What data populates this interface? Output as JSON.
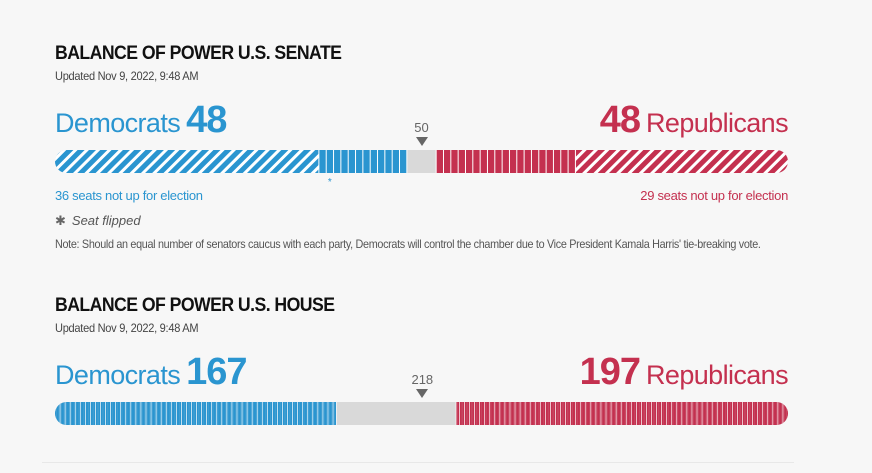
{
  "senate": {
    "title": "BALANCE OF POWER U.S. SENATE",
    "updated": "Updated Nov 9, 2022, 9:48 AM",
    "dem_label": "Democrats",
    "rep_label": "Republicans",
    "threshold_label": "50",
    "dem_note": "36 seats not up for election",
    "rep_note": "29 seats not up for election",
    "legend_star": "✱",
    "legend_label": "Seat flipped",
    "note": "Note: Should an equal number of senators caucus with each party, Democrats will control the chamber due to Vice President Kamala Harris' tie-breaking vote.",
    "flip_marker": "*"
  },
  "house": {
    "title": "BALANCE OF POWER U.S. HOUSE",
    "updated": "Updated Nov 9, 2022, 9:48 AM",
    "dem_label": "Democrats",
    "rep_label": "Republicans",
    "threshold_label": "218"
  },
  "colors": {
    "democrat": "#2a95d0",
    "republican": "#c4304f",
    "undecided": "#d9d9d9"
  },
  "chart_data": [
    {
      "type": "bar",
      "chamber": "senate",
      "total_seats": 100,
      "majority_threshold": 50,
      "democrats": {
        "seats": 48,
        "not_up_for_election": 36
      },
      "republicans": {
        "seats": 48,
        "not_up_for_election": 29
      },
      "undecided": 4,
      "flipped_seats": [
        {
          "party": "democrat",
          "seat_index": 37
        }
      ]
    },
    {
      "type": "bar",
      "chamber": "house",
      "total_seats": 435,
      "majority_threshold": 218,
      "democrats": {
        "seats": 167
      },
      "republicans": {
        "seats": 197
      },
      "undecided": 71
    }
  ]
}
